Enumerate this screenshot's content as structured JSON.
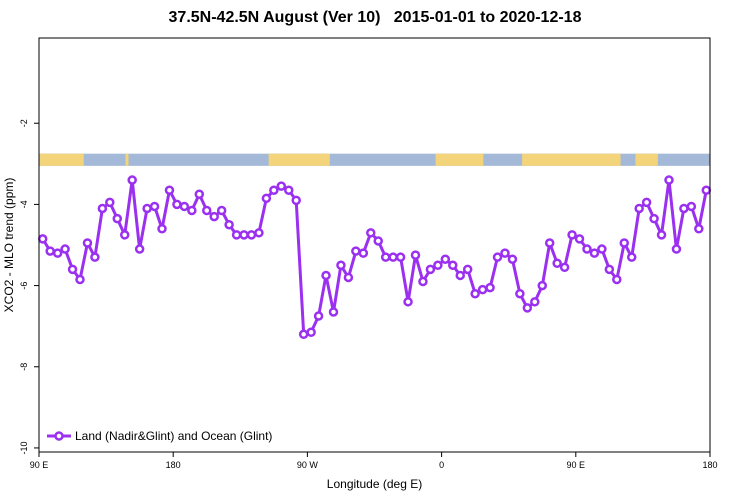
{
  "chart_data": {
    "type": "line",
    "title": "37.5N-42.5N August (Ver 10)   2015-01-01 to 2020-12-18",
    "xlabel": "Longitude (deg E)",
    "ylabel": "XCO2 - MLO trend (ppm)",
    "xlim": [
      90,
      540
    ],
    "ylim": [
      -10.1,
      0.1
    ],
    "x_ticks": [
      {
        "value": 90,
        "label": "90 E"
      },
      {
        "value": 180,
        "label": "180"
      },
      {
        "value": 270,
        "label": "90 W"
      },
      {
        "value": 360,
        "label": "0"
      },
      {
        "value": 450,
        "label": "90 E"
      },
      {
        "value": 540,
        "label": "180"
      }
    ],
    "y_ticks": [
      {
        "value": -2,
        "label": "-2"
      },
      {
        "value": -4,
        "label": "-4"
      },
      {
        "value": -6,
        "label": "-6"
      },
      {
        "value": -8,
        "label": "-8"
      },
      {
        "value": -10,
        "label": "-10"
      }
    ],
    "grid": false,
    "legend_position": "bottom-left",
    "series": [
      {
        "name": "Land (Nadir&Glint) and Ocean (Glint)",
        "color": "#9b30f0",
        "x": [
          92.5,
          97.5,
          102.5,
          107.5,
          112.5,
          117.5,
          122.5,
          127.5,
          132.5,
          137.5,
          142.5,
          147.5,
          152.5,
          157.5,
          162.5,
          167.5,
          172.5,
          177.5,
          182.5,
          187.5,
          192.5,
          197.5,
          202.5,
          207.5,
          212.5,
          217.5,
          222.5,
          227.5,
          232.5,
          237.5,
          242.5,
          247.5,
          252.5,
          257.5,
          262.5,
          267.5,
          272.5,
          277.5,
          282.5,
          287.5,
          292.5,
          297.5,
          302.5,
          307.5,
          312.5,
          317.5,
          322.5,
          327.5,
          332.5,
          337.5,
          342.5,
          347.5,
          352.5,
          357.5,
          362.5,
          367.5,
          372.5,
          377.5,
          382.5,
          387.5,
          392.5,
          397.5,
          402.5,
          407.5,
          412.5,
          417.5,
          422.5,
          427.5,
          432.5,
          437.5,
          442.5,
          447.5,
          452.5,
          457.5,
          462.5,
          467.5,
          472.5,
          477.5,
          482.5,
          487.5,
          492.5,
          497.5,
          502.5,
          507.5,
          512.5,
          517.5,
          522.5,
          527.5,
          532.5,
          537.5
        ],
        "values": [
          -4.85,
          -5.15,
          -5.2,
          -5.1,
          -5.6,
          -5.85,
          -4.95,
          -5.3,
          -4.1,
          -3.95,
          -4.35,
          -4.75,
          -3.4,
          -5.1,
          -4.1,
          -4.05,
          -4.6,
          -3.65,
          -4.0,
          -4.05,
          -4.15,
          -3.75,
          -4.15,
          -4.3,
          -4.15,
          -4.5,
          -4.75,
          -4.75,
          -4.75,
          -4.7,
          -3.85,
          -3.65,
          -3.55,
          -3.65,
          -3.9,
          -7.2,
          -7.15,
          -6.75,
          -5.75,
          -6.65,
          -5.5,
          -5.8,
          -5.15,
          -5.2,
          -4.7,
          -4.9,
          -5.3,
          -5.3,
          -5.3,
          -6.4,
          -5.25,
          -5.9,
          -5.6,
          -5.5,
          -5.35,
          -5.5,
          -5.75,
          -5.6,
          -6.2,
          -6.1,
          -6.05,
          -5.3,
          -5.2,
          -5.35,
          -6.2,
          -6.55,
          -6.4,
          -6.0,
          -4.95,
          -5.45,
          -5.55,
          -4.75,
          -4.85,
          -5.1,
          -5.2,
          -5.1,
          -5.6,
          -5.85,
          -4.95,
          -5.3,
          -4.1,
          -3.95,
          -4.35,
          -4.75,
          -3.4,
          -5.1,
          -4.1,
          -4.05,
          -4.6,
          -3.65
        ]
      }
    ],
    "map_strip": {
      "y_range": [
        -2.75,
        -3.05
      ],
      "ocean_color": "#a4b9d8",
      "land_color": "#f4d47a",
      "land_spans": [
        [
          90,
          120
        ],
        [
          148,
          150
        ],
        [
          244,
          285
        ],
        [
          356,
          388
        ],
        [
          414,
          480
        ],
        [
          490,
          505
        ]
      ]
    }
  }
}
